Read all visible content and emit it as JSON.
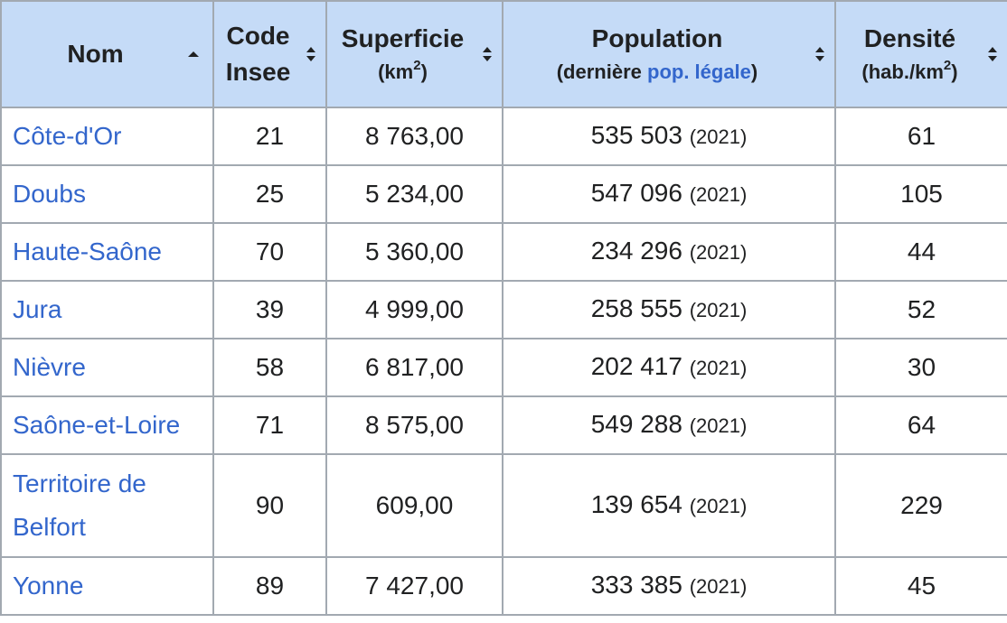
{
  "table": {
    "headers": {
      "nom": "Nom",
      "code_line1": "Code",
      "code_line2": "Insee",
      "superficie": "Superficie",
      "superficie_unit_prefix": "(km",
      "superficie_unit_sup": "2",
      "superficie_unit_suffix": ")",
      "population": "Population",
      "population_sub_prefix": "(dernière ",
      "population_sub_link": "pop. légale",
      "population_sub_suffix": ")",
      "densite": "Densité",
      "densite_unit_prefix": "(hab./km",
      "densite_unit_sup": "2",
      "densite_unit_suffix": ")"
    },
    "rows": [
      {
        "nom": "Côte-d'Or",
        "code": "21",
        "superficie": "8 763,00",
        "population": "535 503",
        "year": "(2021)",
        "densite": "61"
      },
      {
        "nom": "Doubs",
        "code": "25",
        "superficie": "5 234,00",
        "population": "547 096",
        "year": "(2021)",
        "densite": "105"
      },
      {
        "nom": "Haute-Saône",
        "code": "70",
        "superficie": "5 360,00",
        "population": "234 296",
        "year": "(2021)",
        "densite": "44"
      },
      {
        "nom": "Jura",
        "code": "39",
        "superficie": "4 999,00",
        "population": "258 555",
        "year": "(2021)",
        "densite": "52"
      },
      {
        "nom": "Nièvre",
        "code": "58",
        "superficie": "6 817,00",
        "population": "202 417",
        "year": "(2021)",
        "densite": "30"
      },
      {
        "nom": "Saône-et-Loire",
        "code": "71",
        "superficie": "8 575,00",
        "population": "549 288",
        "year": "(2021)",
        "densite": "64"
      },
      {
        "nom_line1": "Territoire de",
        "nom_line2": "Belfort",
        "code": "90",
        "superficie": "609,00",
        "population": "139 654",
        "year": "(2021)",
        "densite": "229"
      },
      {
        "nom": "Yonne",
        "code": "89",
        "superficie": "7 427,00",
        "population": "333 385",
        "year": "(2021)",
        "densite": "45"
      }
    ]
  },
  "icons": {
    "sort_ascending": "sort-ascending-icon",
    "sort_both": "sort-icon"
  },
  "colors": {
    "header_bg": "#c5dbf7",
    "border": "#a2a9b1",
    "link": "#3366cc",
    "text": "#202122"
  }
}
